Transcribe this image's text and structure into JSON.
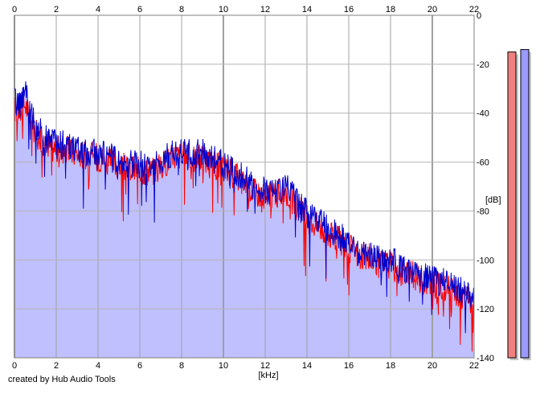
{
  "chart_data": {
    "type": "area",
    "xlabel": "[kHz]",
    "ylabel": "[dB]",
    "x_ticks": [
      0,
      2,
      4,
      6,
      8,
      10,
      12,
      14,
      16,
      18,
      20,
      22
    ],
    "y_ticks": [
      0,
      -20,
      -40,
      -60,
      -80,
      -100,
      -120,
      -140
    ],
    "xlim": [
      0,
      22
    ],
    "ylim": [
      -140,
      0
    ],
    "grid": true,
    "series": [
      {
        "color": "#ff0000",
        "x": [
          0.0,
          0.25,
          0.5,
          1.0,
          1.5,
          2.0,
          2.5,
          3.0,
          3.5,
          4.0,
          4.5,
          5.0,
          5.5,
          6.0,
          6.5,
          7.0,
          7.5,
          8.0,
          8.5,
          9.0,
          9.5,
          10.0,
          10.5,
          11.0,
          11.5,
          12.0,
          12.5,
          13.0,
          13.5,
          14.0,
          14.5,
          15.0,
          15.5,
          16.0,
          16.5,
          17.0,
          17.5,
          18.0,
          18.5,
          19.0,
          19.5,
          20.0,
          20.5,
          21.0,
          21.5,
          22.0
        ],
        "values": [
          -38,
          -40,
          -36,
          -48,
          -52,
          -55,
          -55,
          -57,
          -57,
          -58,
          -60,
          -61,
          -63,
          -63,
          -64,
          -62,
          -58,
          -57,
          -59,
          -58,
          -61,
          -63,
          -65,
          -69,
          -72,
          -74,
          -73,
          -72,
          -78,
          -83,
          -86,
          -89,
          -92,
          -95,
          -98,
          -99,
          -101,
          -102,
          -105,
          -106,
          -108,
          -110,
          -111,
          -113,
          -115,
          -117
        ]
      },
      {
        "color": "#0000cc",
        "x": [
          0.0,
          0.25,
          0.5,
          1.0,
          1.5,
          2.0,
          2.5,
          3.0,
          3.5,
          4.0,
          4.5,
          5.0,
          5.5,
          6.0,
          6.5,
          7.0,
          7.5,
          8.0,
          8.5,
          9.0,
          9.5,
          10.0,
          10.5,
          11.0,
          11.5,
          12.0,
          12.5,
          13.0,
          13.5,
          14.0,
          14.5,
          15.0,
          15.5,
          16.0,
          16.5,
          17.0,
          17.5,
          18.0,
          18.5,
          19.0,
          19.5,
          20.0,
          20.5,
          21.0,
          21.5,
          22.0
        ],
        "values": [
          -35,
          -37,
          -31,
          -46,
          -50,
          -53,
          -53,
          -55,
          -56,
          -56,
          -58,
          -59,
          -61,
          -61,
          -62,
          -60,
          -56,
          -55,
          -57,
          -56,
          -59,
          -61,
          -63,
          -67,
          -70,
          -72,
          -71,
          -70,
          -76,
          -81,
          -84,
          -87,
          -90,
          -93,
          -96,
          -97,
          -99,
          -100,
          -103,
          -104,
          -106,
          -108,
          -109,
          -111,
          -113,
          -115
        ]
      }
    ],
    "meters": [
      {
        "color": "#f08080",
        "value": -15
      },
      {
        "color": "#9999ff",
        "value": -14
      }
    ]
  },
  "footer": {
    "credit": "created by Hub Audio Tools"
  }
}
